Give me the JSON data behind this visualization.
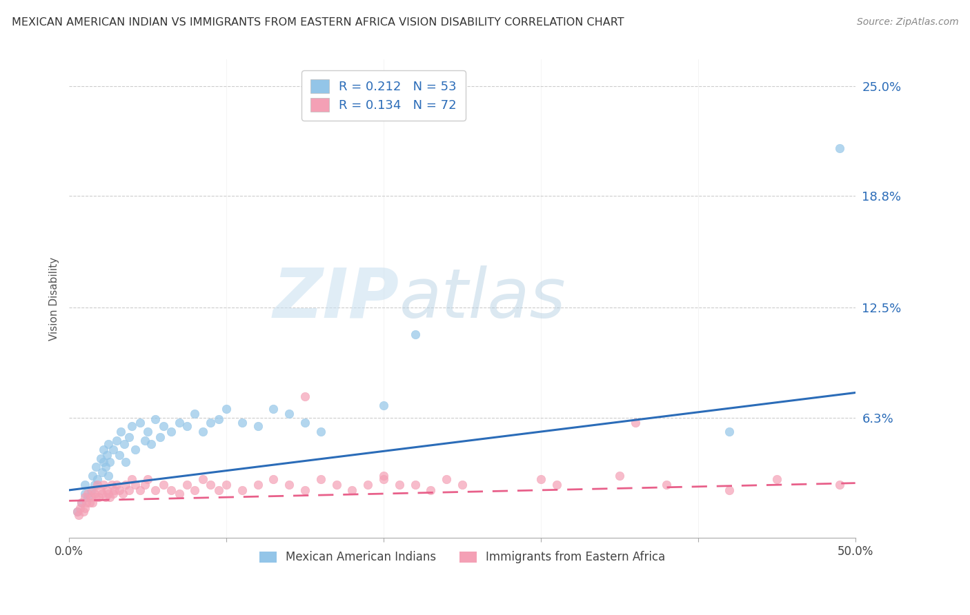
{
  "title": "MEXICAN AMERICAN INDIAN VS IMMIGRANTS FROM EASTERN AFRICA VISION DISABILITY CORRELATION CHART",
  "source": "Source: ZipAtlas.com",
  "ylabel": "Vision Disability",
  "yticks": [
    0.0,
    0.063,
    0.125,
    0.188,
    0.25
  ],
  "ytick_labels": [
    "",
    "6.3%",
    "12.5%",
    "18.8%",
    "25.0%"
  ],
  "xlim": [
    0.0,
    0.5
  ],
  "ylim": [
    -0.005,
    0.265
  ],
  "blue_R": 0.212,
  "blue_N": 53,
  "pink_R": 0.134,
  "pink_N": 72,
  "blue_color": "#93c5e8",
  "pink_color": "#f4a0b5",
  "blue_line_color": "#2b6cb8",
  "pink_line_color": "#e8608a",
  "legend_label_blue": "Mexican American Indians",
  "legend_label_pink": "Immigrants from Eastern Africa",
  "watermark_zip": "ZIP",
  "watermark_atlas": "atlas",
  "blue_x": [
    0.005,
    0.008,
    0.01,
    0.01,
    0.012,
    0.014,
    0.015,
    0.016,
    0.017,
    0.018,
    0.02,
    0.021,
    0.022,
    0.022,
    0.023,
    0.024,
    0.025,
    0.025,
    0.026,
    0.028,
    0.03,
    0.032,
    0.033,
    0.035,
    0.036,
    0.038,
    0.04,
    0.042,
    0.045,
    0.048,
    0.05,
    0.052,
    0.055,
    0.058,
    0.06,
    0.065,
    0.07,
    0.075,
    0.08,
    0.085,
    0.09,
    0.095,
    0.1,
    0.11,
    0.12,
    0.13,
    0.14,
    0.15,
    0.16,
    0.2,
    0.22,
    0.42,
    0.49
  ],
  "blue_y": [
    0.01,
    0.015,
    0.02,
    0.025,
    0.018,
    0.022,
    0.03,
    0.025,
    0.035,
    0.028,
    0.04,
    0.032,
    0.038,
    0.045,
    0.035,
    0.042,
    0.03,
    0.048,
    0.038,
    0.045,
    0.05,
    0.042,
    0.055,
    0.048,
    0.038,
    0.052,
    0.058,
    0.045,
    0.06,
    0.05,
    0.055,
    0.048,
    0.062,
    0.052,
    0.058,
    0.055,
    0.06,
    0.058,
    0.065,
    0.055,
    0.06,
    0.062,
    0.068,
    0.06,
    0.058,
    0.068,
    0.065,
    0.06,
    0.055,
    0.07,
    0.11,
    0.055,
    0.215
  ],
  "pink_x": [
    0.005,
    0.006,
    0.007,
    0.008,
    0.009,
    0.01,
    0.01,
    0.011,
    0.012,
    0.013,
    0.014,
    0.015,
    0.015,
    0.016,
    0.017,
    0.018,
    0.019,
    0.02,
    0.021,
    0.022,
    0.023,
    0.024,
    0.025,
    0.026,
    0.027,
    0.028,
    0.029,
    0.03,
    0.032,
    0.034,
    0.036,
    0.038,
    0.04,
    0.042,
    0.045,
    0.048,
    0.05,
    0.055,
    0.06,
    0.065,
    0.07,
    0.075,
    0.08,
    0.085,
    0.09,
    0.095,
    0.1,
    0.11,
    0.12,
    0.13,
    0.14,
    0.15,
    0.16,
    0.17,
    0.18,
    0.19,
    0.2,
    0.21,
    0.22,
    0.23,
    0.24,
    0.25,
    0.3,
    0.31,
    0.35,
    0.36,
    0.38,
    0.42,
    0.45,
    0.49,
    0.15,
    0.2
  ],
  "pink_y": [
    0.01,
    0.008,
    0.012,
    0.015,
    0.01,
    0.018,
    0.012,
    0.015,
    0.02,
    0.015,
    0.018,
    0.022,
    0.015,
    0.02,
    0.018,
    0.025,
    0.018,
    0.022,
    0.02,
    0.025,
    0.018,
    0.022,
    0.02,
    0.018,
    0.025,
    0.02,
    0.022,
    0.025,
    0.022,
    0.02,
    0.025,
    0.022,
    0.028,
    0.025,
    0.022,
    0.025,
    0.028,
    0.022,
    0.025,
    0.022,
    0.02,
    0.025,
    0.022,
    0.028,
    0.025,
    0.022,
    0.025,
    0.022,
    0.025,
    0.028,
    0.025,
    0.022,
    0.028,
    0.025,
    0.022,
    0.025,
    0.028,
    0.025,
    0.025,
    0.022,
    0.028,
    0.025,
    0.028,
    0.025,
    0.03,
    0.06,
    0.025,
    0.022,
    0.028,
    0.025,
    0.075,
    0.03
  ]
}
